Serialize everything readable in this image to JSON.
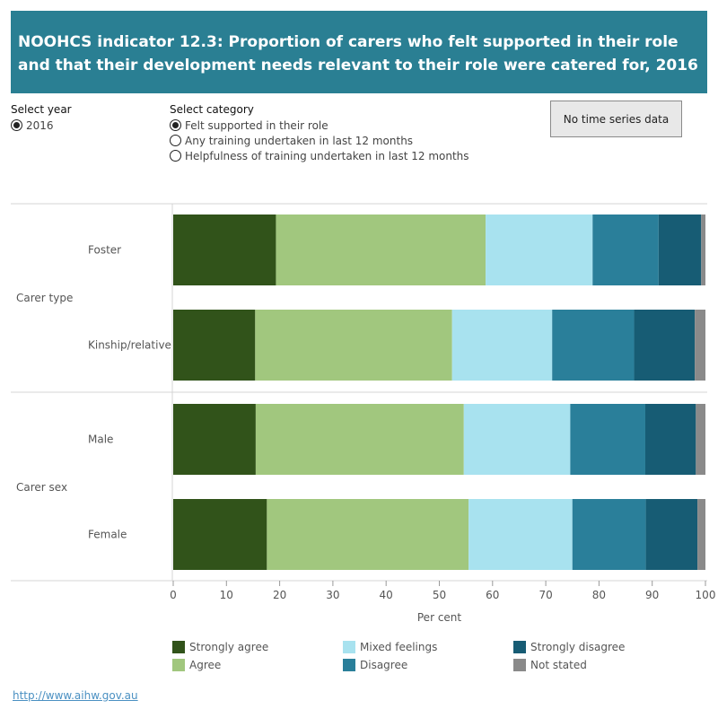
{
  "title": "NOOHCS indicator 12.3: Proportion of carers who felt supported in their role and that their development needs relevant to their role were catered for, 2016",
  "controls": {
    "year": {
      "label": "Select year",
      "options": [
        {
          "label": "2016",
          "selected": true
        }
      ]
    },
    "category": {
      "label": "Select category",
      "options": [
        {
          "label": "Felt supported in their role",
          "selected": true
        },
        {
          "label": "Any training undertaken in last 12 months",
          "selected": false
        },
        {
          "label": "Helpfulness of training undertaken in last 12 months",
          "selected": false
        }
      ]
    },
    "button_label": "No time series data"
  },
  "chart_data": {
    "type": "bar",
    "orientation": "horizontal",
    "stacked": true,
    "xlabel": "Per cent",
    "xlim": [
      0,
      100
    ],
    "x_ticks": [
      "0",
      "10",
      "20",
      "30",
      "40",
      "50",
      "60",
      "70",
      "80",
      "90",
      "100"
    ],
    "groups": [
      {
        "name": "Carer type",
        "categories": [
          "Foster",
          "Kinship/relative"
        ]
      },
      {
        "name": "Carer sex",
        "categories": [
          "Male",
          "Female"
        ]
      }
    ],
    "categories": [
      "Foster",
      "Kinship/relative",
      "Male",
      "Female"
    ],
    "series": [
      {
        "name": "Strongly agree",
        "color": "#31531a",
        "values": [
          19.3,
          15.4,
          15.5,
          17.6
        ]
      },
      {
        "name": "Agree",
        "color": "#a1c77e",
        "values": [
          39.4,
          37.0,
          39.1,
          37.9
        ]
      },
      {
        "name": "Mixed feelings",
        "color": "#a8e2ef",
        "values": [
          20.1,
          18.8,
          20.0,
          19.5
        ]
      },
      {
        "name": "Disagree",
        "color": "#2a7f9a",
        "values": [
          12.4,
          15.4,
          14.1,
          13.8
        ]
      },
      {
        "name": "Strongly disagree",
        "color": "#175c74",
        "values": [
          8.0,
          11.4,
          9.5,
          9.7
        ]
      },
      {
        "name": "Not stated",
        "color": "#8a8a8a",
        "values": [
          0.8,
          2.0,
          1.8,
          1.5
        ]
      }
    ],
    "legend_position": "bottom"
  },
  "footer_link": "http://www.aihw.gov.au"
}
